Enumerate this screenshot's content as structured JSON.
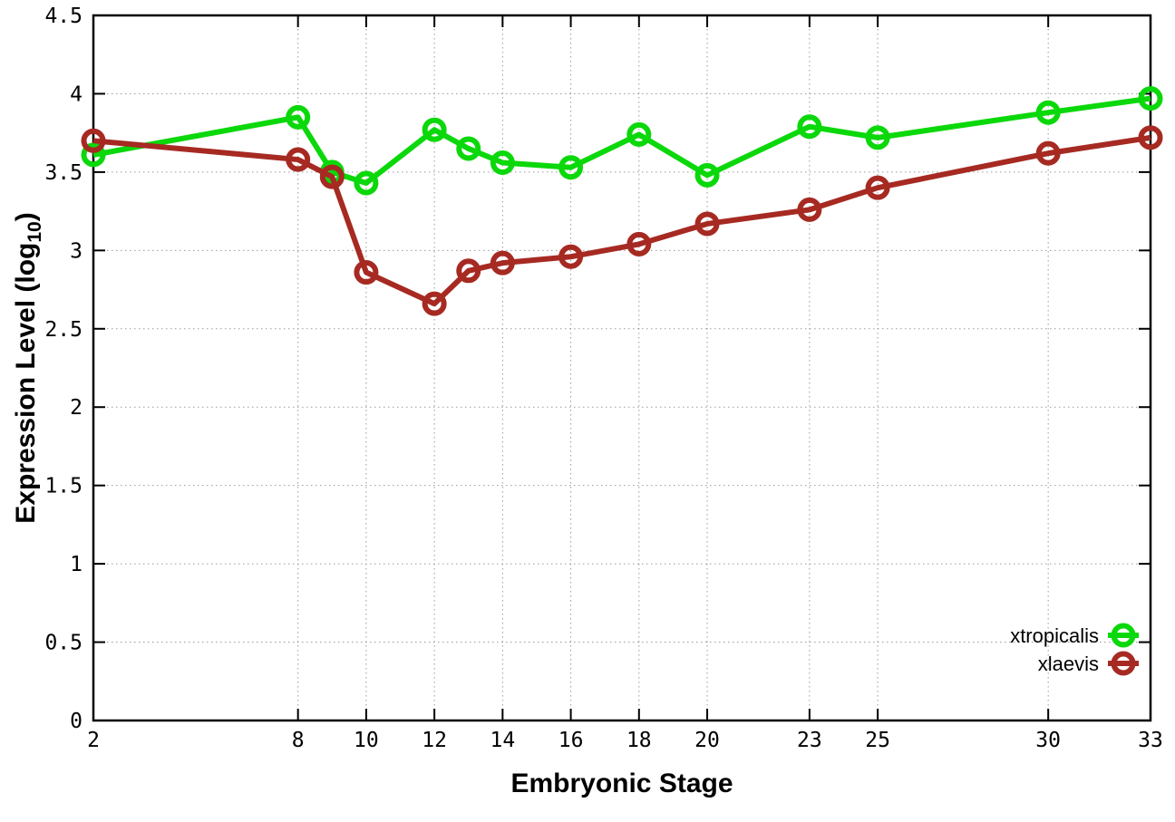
{
  "chart_data": {
    "type": "line",
    "x": [
      2,
      8,
      9,
      10,
      12,
      13,
      14,
      16,
      18,
      20,
      23,
      25,
      30,
      33
    ],
    "series": [
      {
        "name": "xtropicalis",
        "color": "#0bd80b",
        "values": [
          3.61,
          3.85,
          3.5,
          3.43,
          3.77,
          3.65,
          3.56,
          3.53,
          3.74,
          3.48,
          3.79,
          3.72,
          3.88,
          3.97
        ]
      },
      {
        "name": "xlaevis",
        "color": "#a62a22",
        "values": [
          3.7,
          3.58,
          3.47,
          2.86,
          2.66,
          2.87,
          2.92,
          2.96,
          3.04,
          3.17,
          3.26,
          3.4,
          3.62,
          3.72
        ]
      }
    ],
    "xlabel": "Embryonic Stage",
    "ylabel": "Expression Level (log10)",
    "ylabel_parts": {
      "main": "Expression Level (log",
      "sub": "10",
      "end": ")"
    },
    "xlim": [
      2,
      33
    ],
    "ylim": [
      0,
      4.5
    ],
    "xticks": {
      "values": [
        2,
        8,
        10,
        12,
        14,
        16,
        18,
        20,
        23,
        25,
        30,
        33
      ],
      "labels": [
        "2",
        "8",
        "10",
        "12",
        "14",
        "16",
        "18",
        "20",
        "23",
        "25",
        "30",
        "33"
      ]
    },
    "yticks": {
      "values": [
        0,
        0.5,
        1,
        1.5,
        2,
        2.5,
        3,
        3.5,
        4,
        4.5
      ],
      "labels": [
        "0",
        "0.5",
        "1",
        "1.5",
        "2",
        "2.5",
        "3",
        "3.5",
        "4",
        "4.5"
      ]
    },
    "grid": "dotted",
    "marker": "open-circle",
    "legend": {
      "position": "bottom-right",
      "entries": [
        "xtropicalis",
        "xlaevis"
      ]
    },
    "colors": {
      "xtropicalis": "#0bd80b",
      "xlaevis": "#a62a22",
      "grid": "#9b9b9b",
      "border": "#000000"
    }
  }
}
